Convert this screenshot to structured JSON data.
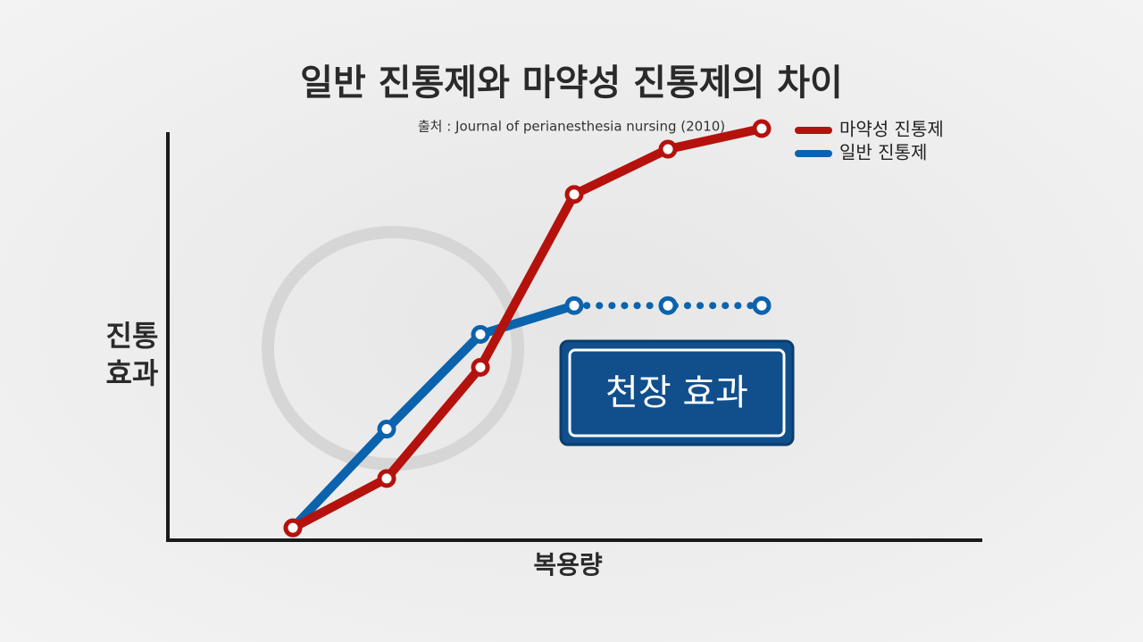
{
  "chart_data": {
    "type": "line",
    "title": "일반 진통제와 마약성 진통제의 차이",
    "subtitle": "출처 : Journal of perianesthesia nursing (2010)",
    "y_label": [
      "진통",
      "효과"
    ],
    "x_label": "복용량",
    "annotation": "천장 효과",
    "categories": [
      null,
      null,
      null,
      null,
      null,
      null
    ],
    "ylim": [
      0,
      100
    ],
    "series": [
      {
        "name": "일반 진통제",
        "color": "#0b63ad",
        "values": [
          3,
          27,
          50,
          57,
          57,
          57
        ],
        "dotted_from_index": 3
      },
      {
        "name": "마약성 진통제",
        "color": "#b5120d",
        "values": [
          3,
          15,
          42,
          84,
          95,
          100
        ]
      }
    ],
    "legend": "top-right"
  }
}
